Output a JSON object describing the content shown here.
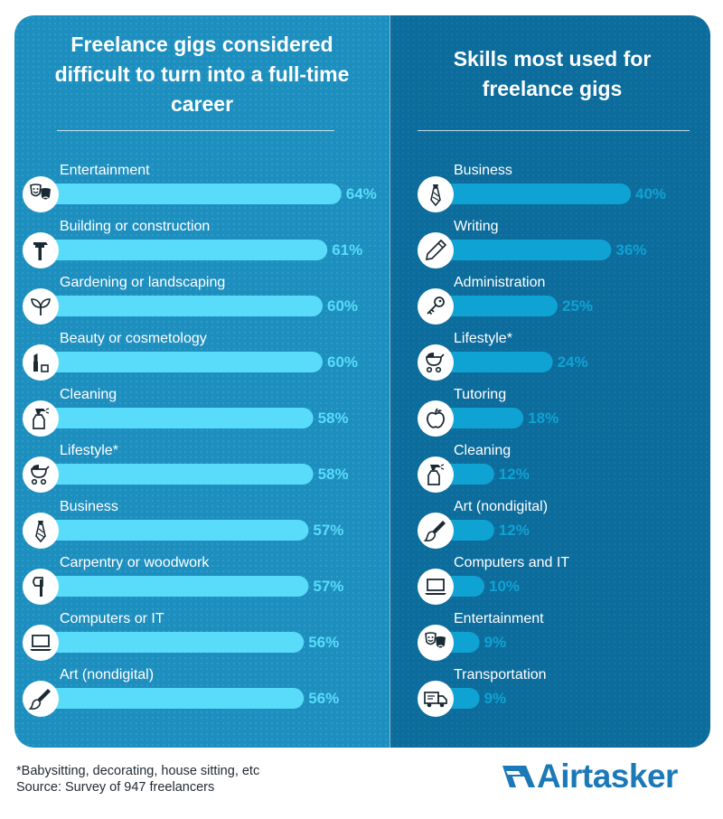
{
  "colors": {
    "left_panel": "#1d8fbf",
    "right_panel": "#0c6c9c",
    "left_bar": "#59dcfa",
    "right_bar": "#0fa3d3",
    "brand": "#1b79b8"
  },
  "chart_data": [
    {
      "type": "bar",
      "orientation": "horizontal",
      "title": "Freelance gigs considered difficult to turn into a full-time career",
      "categories": [
        "Entertainment",
        "Building or construction",
        "Gardening or landscaping",
        "Beauty or cosmetology",
        "Cleaning",
        "Lifestyle*",
        "Business",
        "Carpentry or woodwork",
        "Computers or IT",
        "Art (nondigital)"
      ],
      "values": [
        64,
        61,
        60,
        60,
        58,
        58,
        57,
        57,
        56,
        56
      ],
      "value_labels": [
        "64%",
        "61%",
        "60%",
        "60%",
        "58%",
        "58%",
        "57%",
        "57%",
        "56%",
        "56%"
      ],
      "icons": [
        "theater-masks-icon",
        "hammer-icon",
        "leaves-icon",
        "lipstick-icon",
        "spray-bottle-icon",
        "stroller-icon",
        "necktie-icon",
        "axe-icon",
        "laptop-icon",
        "paintbrush-icon"
      ],
      "unit": "%",
      "grid": false
    },
    {
      "type": "bar",
      "orientation": "horizontal",
      "title": "Skills most used for freelance gigs",
      "categories": [
        "Business",
        "Writing",
        "Administration",
        "Lifestyle*",
        "Tutoring",
        "Cleaning",
        "Art (nondigital)",
        "Computers and IT",
        "Entertainment",
        "Transportation"
      ],
      "values": [
        40,
        36,
        25,
        24,
        18,
        12,
        12,
        10,
        9,
        9
      ],
      "value_labels": [
        "40%",
        "36%",
        "25%",
        "24%",
        "18%",
        "12%",
        "12%",
        "10%",
        "9%",
        "9%"
      ],
      "icons": [
        "necktie-icon",
        "pencil-icon",
        "key-icon",
        "stroller-icon",
        "apple-icon",
        "spray-bottle-icon",
        "paintbrush-icon",
        "laptop-icon",
        "theater-masks-icon",
        "delivery-truck-icon"
      ],
      "unit": "%",
      "grid": false
    }
  ],
  "footnote": {
    "line1": "*Babysitting, decorating, house sitting, etc",
    "line2": "Source: Survey of 947 freelancers"
  },
  "logo": {
    "text": "Airtasker"
  }
}
